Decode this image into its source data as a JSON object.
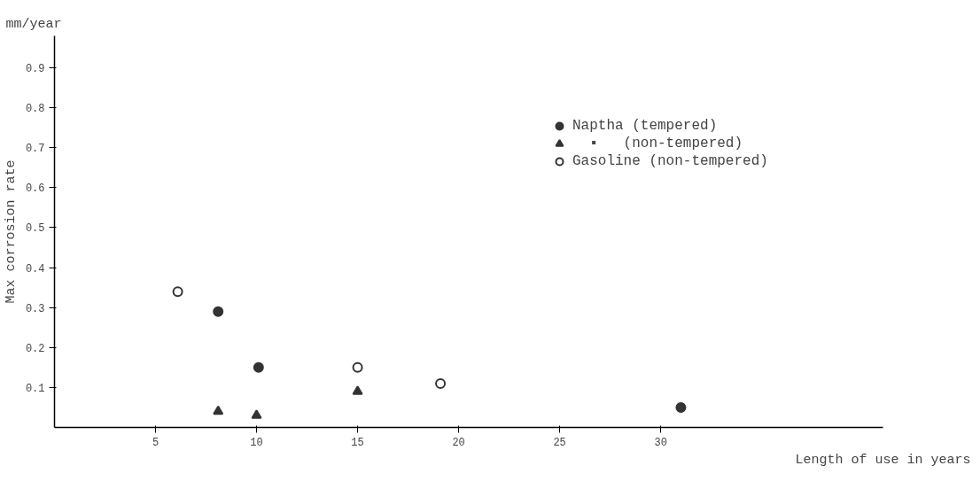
{
  "chart_data": {
    "type": "scatter",
    "xlabel": "Length of use in years",
    "ylabel": "Max corrosion rate",
    "annotations": [
      "mm/year"
    ],
    "xlim": [
      0,
      41
    ],
    "ylim": [
      0,
      0.98
    ],
    "xticks": [
      5,
      10,
      15,
      20,
      25,
      30
    ],
    "yticks": [
      0.1,
      0.2,
      0.3,
      0.4,
      0.5,
      0.6,
      0.7,
      0.8,
      0.9
    ],
    "grid": false,
    "legend": "top right",
    "series": [
      {
        "name": "Naptha (tempered)",
        "color": "#333333",
        "marker": "circle",
        "x": [
          8.1,
          10.1,
          31.0
        ],
        "values": [
          0.29,
          0.15,
          0.05
        ]
      },
      {
        "name": "  ▪   (non-tempered)",
        "color": "#333333",
        "marker": "triangle",
        "x": [
          8.1,
          10.0,
          15.0
        ],
        "values": [
          0.04,
          0.03,
          0.09
        ]
      },
      {
        "name": "Gasoline (non-tempered)",
        "color": "#333333",
        "marker": "circle_open",
        "x": [
          6.1,
          15.0,
          19.1
        ],
        "values": [
          0.34,
          0.15,
          0.11
        ]
      }
    ]
  }
}
